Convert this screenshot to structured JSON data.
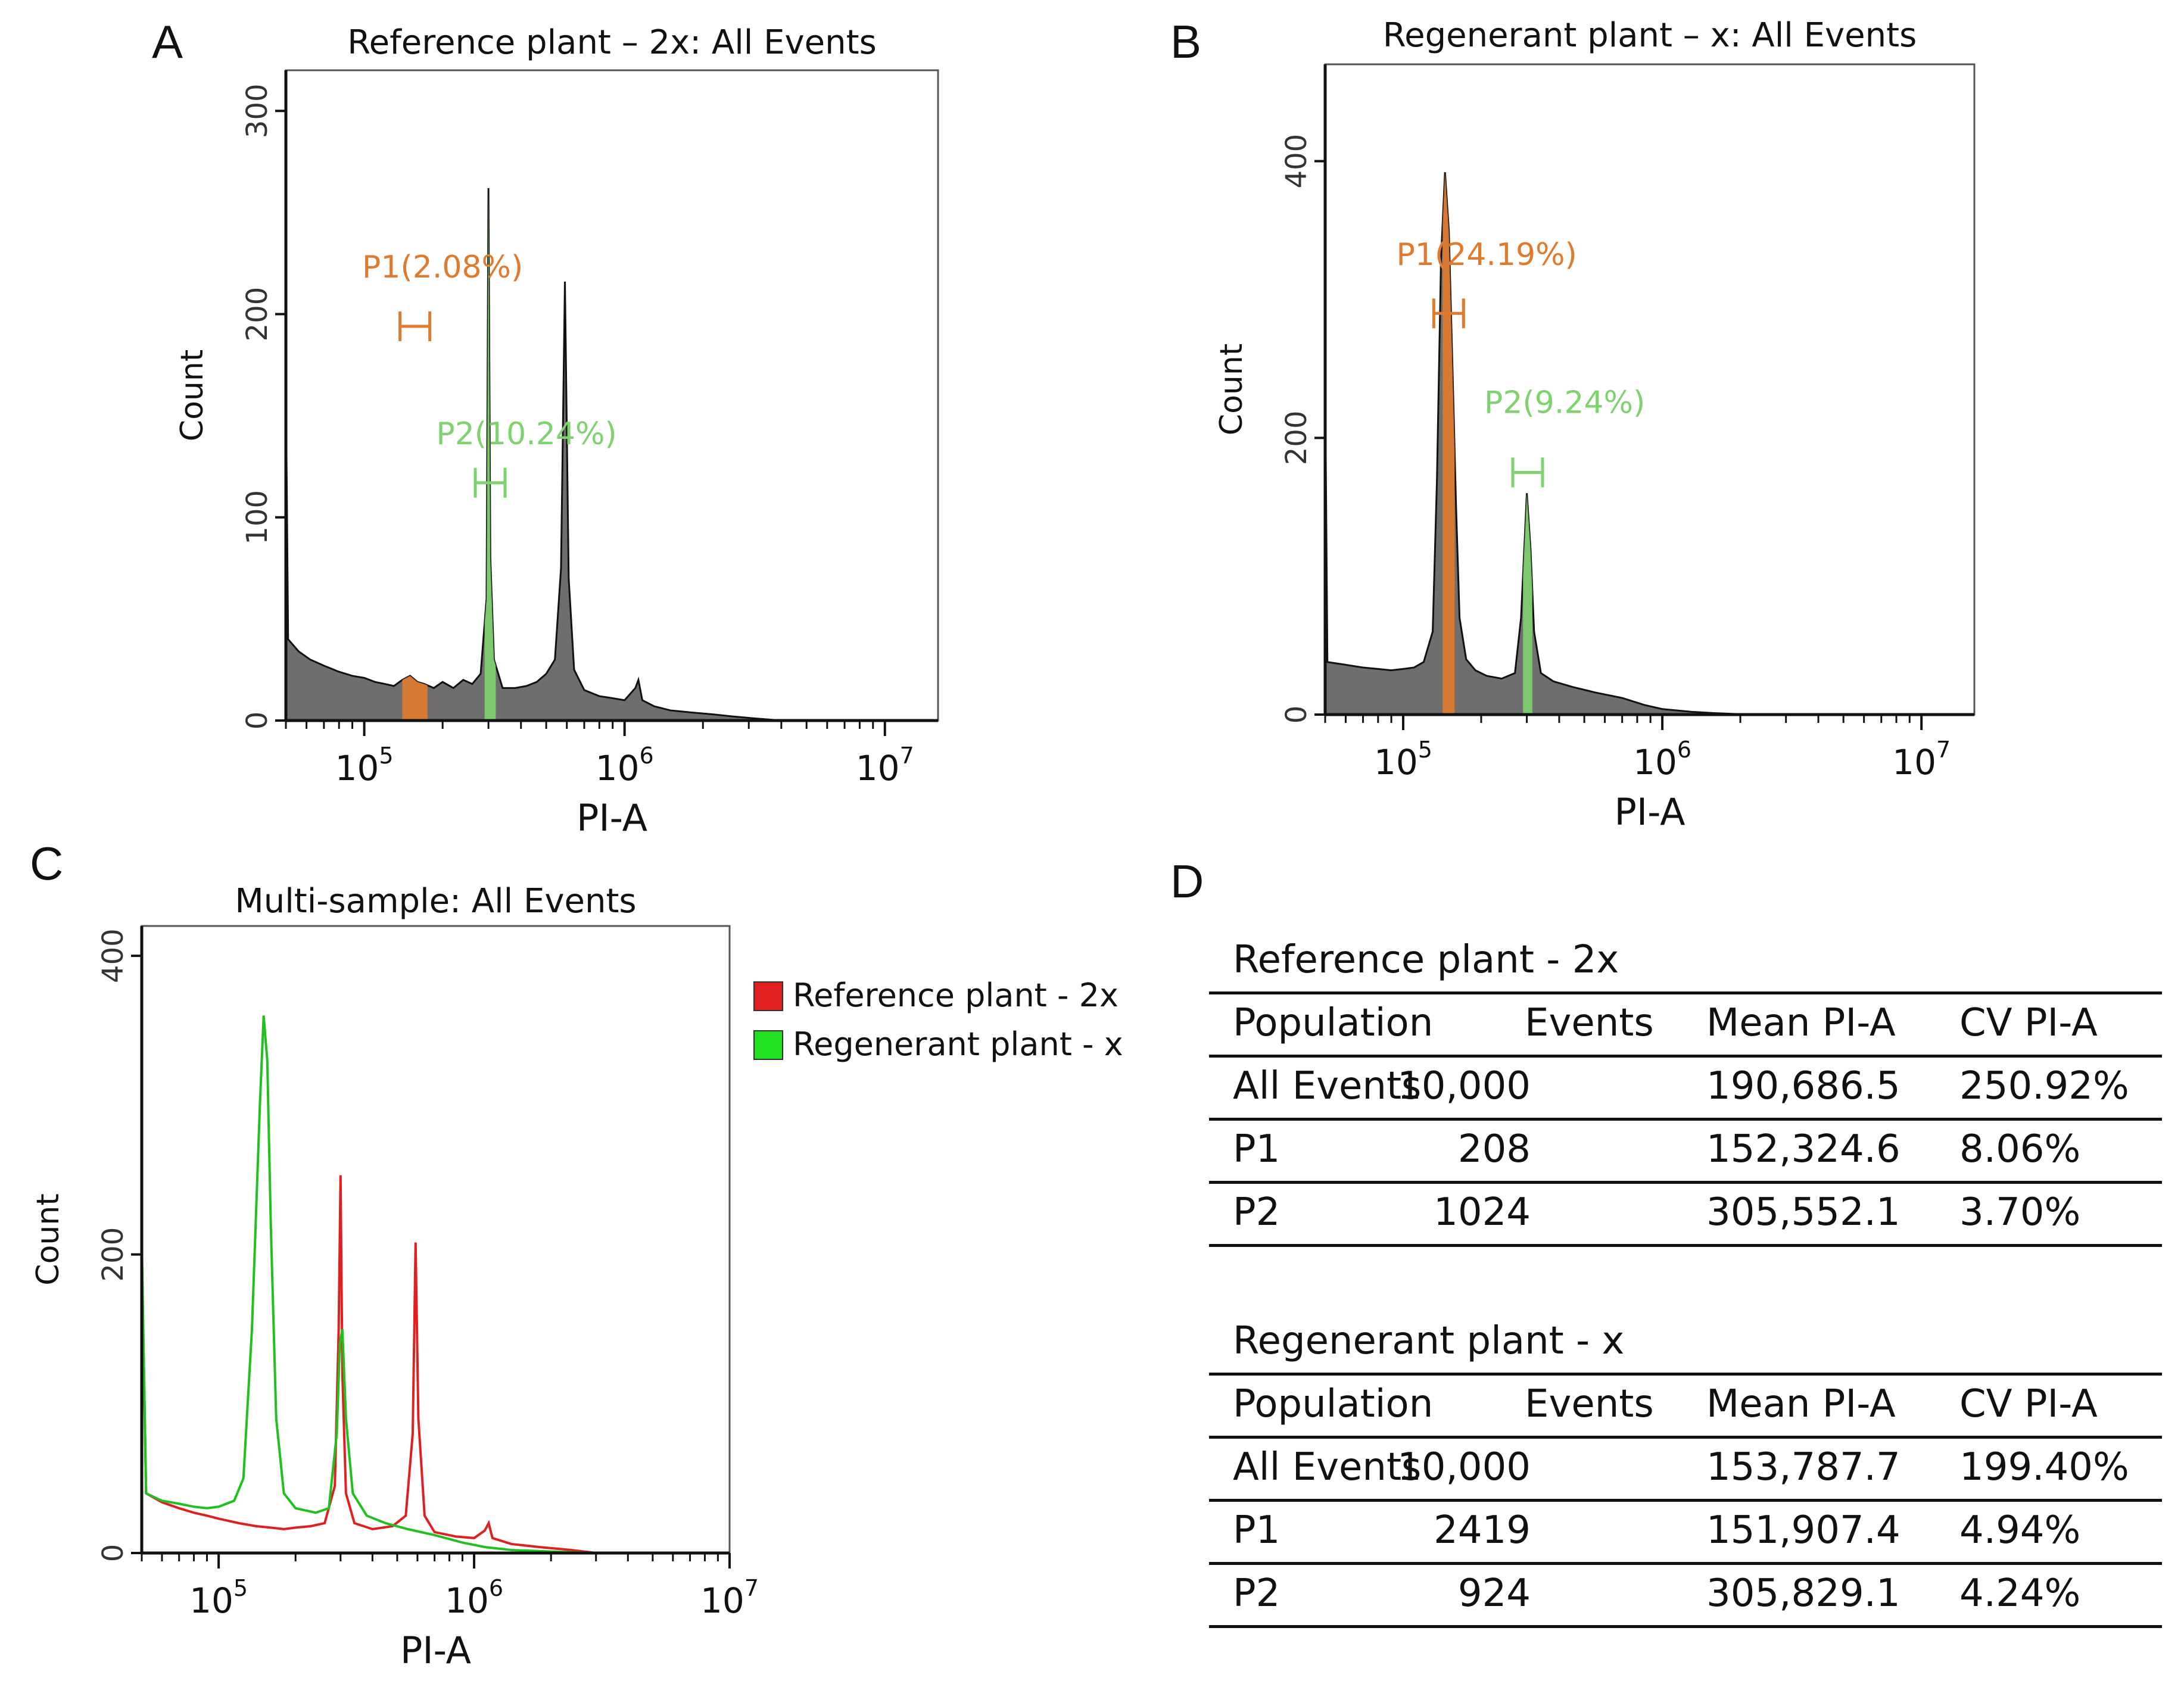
{
  "panel_letters": {
    "a": "A",
    "b": "B",
    "c": "C",
    "d": "D"
  },
  "chart_data": [
    {
      "id": "A",
      "type": "histogram",
      "title": "Reference plant – 2x: All Events",
      "xlabel": "PI-A",
      "ylabel": "Count",
      "x_scale": "log",
      "xlim": [
        50000,
        16000000
      ],
      "ylim": [
        0,
        320
      ],
      "yticks": [
        0,
        100,
        200,
        300
      ],
      "xticks": [
        {
          "base": "10",
          "exp": "5",
          "value": 100000
        },
        {
          "base": "10",
          "exp": "6",
          "value": 1000000
        },
        {
          "base": "10",
          "exp": "7",
          "value": 10000000
        }
      ],
      "fill_color": "#6e6e6e",
      "histogram": [
        [
          50000,
          165
        ],
        [
          51000,
          40
        ],
        [
          56000,
          34
        ],
        [
          62000,
          30
        ],
        [
          70000,
          27
        ],
        [
          80000,
          24
        ],
        [
          90000,
          22
        ],
        [
          100000,
          21
        ],
        [
          110000,
          19
        ],
        [
          120000,
          18
        ],
        [
          130000,
          17
        ],
        [
          140000,
          20
        ],
        [
          150000,
          22
        ],
        [
          160000,
          19
        ],
        [
          170000,
          18
        ],
        [
          185000,
          16
        ],
        [
          200000,
          19
        ],
        [
          220000,
          16
        ],
        [
          240000,
          20
        ],
        [
          260000,
          18
        ],
        [
          280000,
          23
        ],
        [
          295000,
          60
        ],
        [
          300000,
          262
        ],
        [
          305000,
          80
        ],
        [
          315000,
          30
        ],
        [
          340000,
          16
        ],
        [
          380000,
          16
        ],
        [
          420000,
          17
        ],
        [
          460000,
          19
        ],
        [
          500000,
          23
        ],
        [
          540000,
          30
        ],
        [
          570000,
          75
        ],
        [
          590000,
          216
        ],
        [
          610000,
          70
        ],
        [
          640000,
          25
        ],
        [
          700000,
          15
        ],
        [
          800000,
          12
        ],
        [
          900000,
          11
        ],
        [
          1000000,
          10
        ],
        [
          1100000,
          16
        ],
        [
          1130000,
          20
        ],
        [
          1170000,
          10
        ],
        [
          1300000,
          7
        ],
        [
          1500000,
          5
        ],
        [
          1800000,
          4
        ],
        [
          2200000,
          3
        ],
        [
          2600000,
          2
        ],
        [
          3200000,
          1
        ],
        [
          4000000,
          0
        ],
        [
          16000000,
          0
        ]
      ],
      "gates": [
        {
          "name": "P1",
          "label": "P1(2.08%)",
          "color": "#e07a2e",
          "range": [
            140000,
            175000
          ],
          "label_x": 200000,
          "label_y": 218,
          "bar_y": 194
        },
        {
          "name": "P2",
          "label": "P2(10.24%)",
          "color": "#7fd36f",
          "range": [
            290000,
            320000
          ],
          "label_x": 420000,
          "label_y": 136,
          "bar_y": 117
        }
      ]
    },
    {
      "id": "B",
      "type": "histogram",
      "title": "Regenerant plant – x: All Events",
      "xlabel": "PI-A",
      "ylabel": "Count",
      "x_scale": "log",
      "xlim": [
        50000,
        16000000
      ],
      "ylim": [
        0,
        470
      ],
      "yticks": [
        0,
        200,
        400
      ],
      "xticks": [
        {
          "base": "10",
          "exp": "5",
          "value": 100000
        },
        {
          "base": "10",
          "exp": "6",
          "value": 1000000
        },
        {
          "base": "10",
          "exp": "7",
          "value": 10000000
        }
      ],
      "fill_color": "#6e6e6e",
      "histogram": [
        [
          50000,
          240
        ],
        [
          51000,
          38
        ],
        [
          60000,
          36
        ],
        [
          70000,
          34
        ],
        [
          80000,
          33
        ],
        [
          90000,
          32
        ],
        [
          100000,
          33
        ],
        [
          110000,
          34
        ],
        [
          120000,
          38
        ],
        [
          130000,
          60
        ],
        [
          135000,
          170
        ],
        [
          140000,
          330
        ],
        [
          145000,
          392
        ],
        [
          150000,
          350
        ],
        [
          155000,
          250
        ],
        [
          160000,
          150
        ],
        [
          165000,
          70
        ],
        [
          175000,
          40
        ],
        [
          190000,
          32
        ],
        [
          210000,
          28
        ],
        [
          240000,
          26
        ],
        [
          270000,
          30
        ],
        [
          285000,
          70
        ],
        [
          295000,
          130
        ],
        [
          300000,
          160
        ],
        [
          310000,
          120
        ],
        [
          320000,
          60
        ],
        [
          340000,
          30
        ],
        [
          380000,
          24
        ],
        [
          450000,
          20
        ],
        [
          550000,
          16
        ],
        [
          700000,
          12
        ],
        [
          850000,
          7
        ],
        [
          1000000,
          4
        ],
        [
          1300000,
          2
        ],
        [
          1600000,
          1
        ],
        [
          2200000,
          0
        ],
        [
          16000000,
          0
        ]
      ],
      "gates": [
        {
          "name": "P1",
          "label": "P1(24.19%)",
          "color": "#e07a2e",
          "range": [
            142000,
            158000
          ],
          "label_x": 210000,
          "label_y": 325,
          "bar_y": 290
        },
        {
          "name": "P2",
          "label": "P2(9.24%)",
          "color": "#7fd36f",
          "range": [
            290000,
            315000
          ],
          "label_x": 420000,
          "label_y": 218,
          "bar_y": 175
        }
      ]
    },
    {
      "id": "C",
      "type": "line",
      "title": "Multi-sample: All Events",
      "xlabel": "PI-A",
      "ylabel": "Count",
      "x_scale": "log",
      "xlim": [
        50000,
        10000000
      ],
      "ylim": [
        0,
        420
      ],
      "yticks": [
        0,
        200,
        400
      ],
      "xticks": [
        {
          "base": "10",
          "exp": "5",
          "value": 100000
        },
        {
          "base": "10",
          "exp": "6",
          "value": 1000000
        },
        {
          "base": "10",
          "exp": "7",
          "value": 10000000
        }
      ],
      "series": [
        {
          "name": "Reference plant - 2x",
          "color": "#e02020",
          "points": [
            [
              50000,
              200
            ],
            [
              52000,
              40
            ],
            [
              60000,
              34
            ],
            [
              70000,
              30
            ],
            [
              80000,
              27
            ],
            [
              90000,
              25
            ],
            [
              100000,
              23
            ],
            [
              120000,
              20
            ],
            [
              140000,
              18
            ],
            [
              160000,
              17
            ],
            [
              180000,
              16
            ],
            [
              200000,
              17
            ],
            [
              230000,
              18
            ],
            [
              260000,
              20
            ],
            [
              285000,
              45
            ],
            [
              295000,
              150
            ],
            [
              300000,
              253
            ],
            [
              305000,
              120
            ],
            [
              315000,
              40
            ],
            [
              340000,
              20
            ],
            [
              400000,
              16
            ],
            [
              480000,
              18
            ],
            [
              540000,
              25
            ],
            [
              575000,
              80
            ],
            [
              590000,
              208
            ],
            [
              605000,
              90
            ],
            [
              640000,
              25
            ],
            [
              700000,
              14
            ],
            [
              850000,
              11
            ],
            [
              1000000,
              10
            ],
            [
              1100000,
              15
            ],
            [
              1140000,
              20
            ],
            [
              1180000,
              10
            ],
            [
              1400000,
              6
            ],
            [
              1800000,
              4
            ],
            [
              2400000,
              2
            ],
            [
              3000000,
              0
            ],
            [
              10000000,
              0
            ]
          ]
        },
        {
          "name": "Regenerant plant - x",
          "color": "#20c020",
          "points": [
            [
              50000,
              210
            ],
            [
              52000,
              40
            ],
            [
              60000,
              35
            ],
            [
              70000,
              33
            ],
            [
              80000,
              31
            ],
            [
              90000,
              30
            ],
            [
              100000,
              31
            ],
            [
              115000,
              35
            ],
            [
              125000,
              50
            ],
            [
              135000,
              150
            ],
            [
              145000,
              300
            ],
            [
              150000,
              360
            ],
            [
              155000,
              330
            ],
            [
              160000,
              220
            ],
            [
              168000,
              90
            ],
            [
              180000,
              40
            ],
            [
              200000,
              30
            ],
            [
              240000,
              27
            ],
            [
              270000,
              30
            ],
            [
              290000,
              80
            ],
            [
              298000,
              140
            ],
            [
              305000,
              150
            ],
            [
              315000,
              90
            ],
            [
              335000,
              40
            ],
            [
              380000,
              25
            ],
            [
              450000,
              20
            ],
            [
              550000,
              16
            ],
            [
              700000,
              12
            ],
            [
              900000,
              7
            ],
            [
              1100000,
              4
            ],
            [
              1400000,
              2
            ],
            [
              2000000,
              1
            ],
            [
              3000000,
              0
            ],
            [
              10000000,
              0
            ]
          ]
        }
      ],
      "legend": [
        {
          "label": "Reference plant - 2x",
          "color": "#e02020"
        },
        {
          "label": "Regenerant plant - x",
          "color": "#20c020"
        }
      ]
    }
  ],
  "tables": [
    {
      "title": "Reference plant - 2x",
      "headers": [
        "Population",
        "Events",
        "Mean PI-A",
        "CV PI-A"
      ],
      "rows": [
        [
          "All Events",
          "10,000",
          "190,686.5",
          "250.92%"
        ],
        [
          "P1",
          "208",
          "152,324.6",
          "8.06%"
        ],
        [
          "P2",
          "1024",
          "305,552.1",
          " 3.70%"
        ]
      ]
    },
    {
      "title": "Regenerant plant - x",
      "headers": [
        "Population",
        "Events",
        "Mean PI-A",
        "CV PI-A"
      ],
      "rows": [
        [
          "All Events",
          "10,000",
          "153,787.7",
          "199.40%"
        ],
        [
          "P1",
          "2419",
          "151,907.4",
          "4.94%"
        ],
        [
          "P2",
          "924",
          "305,829.1",
          "4.24%"
        ]
      ]
    }
  ]
}
